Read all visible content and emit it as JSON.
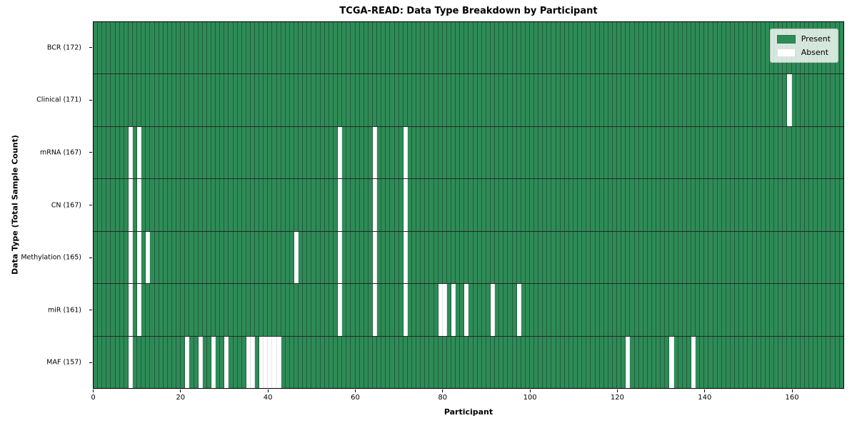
{
  "chart_data": {
    "type": "heatmap",
    "title": "TCGA-READ: Data Type Breakdown by Participant",
    "xlabel": "Participant",
    "ylabel": "Data Type (Total Sample Count)",
    "n_participants": 172,
    "x_axis_range": [
      0,
      172
    ],
    "x_ticks": [
      0,
      20,
      40,
      60,
      80,
      100,
      120,
      140,
      160
    ],
    "grid": "cell-borders",
    "legend_position": "upper right",
    "legend": [
      {
        "label": "Present",
        "color": "#2e8b57"
      },
      {
        "label": "Absent",
        "color": "#ffffff"
      }
    ],
    "colors": {
      "present": "#2e8b57",
      "absent": "#ffffff"
    },
    "rows": [
      {
        "name": "BCR",
        "label": "BCR (172)",
        "count": 172,
        "absent_participants": []
      },
      {
        "name": "Clinical",
        "label": "Clinical (171)",
        "count": 171,
        "absent_participants": [
          159
        ]
      },
      {
        "name": "mRNA",
        "label": "mRNA (167)",
        "count": 167,
        "absent_participants": [
          8,
          10,
          56,
          64,
          71
        ]
      },
      {
        "name": "CN",
        "label": "CN (167)",
        "count": 167,
        "absent_participants": [
          8,
          10,
          56,
          64,
          71
        ]
      },
      {
        "name": "Methylation",
        "label": "Methylation (165)",
        "count": 165,
        "absent_participants": [
          8,
          10,
          12,
          46,
          56,
          64,
          71
        ]
      },
      {
        "name": "miR",
        "label": "miR (161)",
        "count": 161,
        "absent_participants": [
          8,
          10,
          56,
          64,
          71,
          79,
          80,
          82,
          85,
          91,
          97
        ]
      },
      {
        "name": "MAF",
        "label": "MAF (157)",
        "count": 157,
        "absent_participants": [
          8,
          21,
          24,
          27,
          30,
          35,
          36,
          38,
          39,
          40,
          41,
          42,
          122,
          132,
          137
        ]
      }
    ]
  }
}
